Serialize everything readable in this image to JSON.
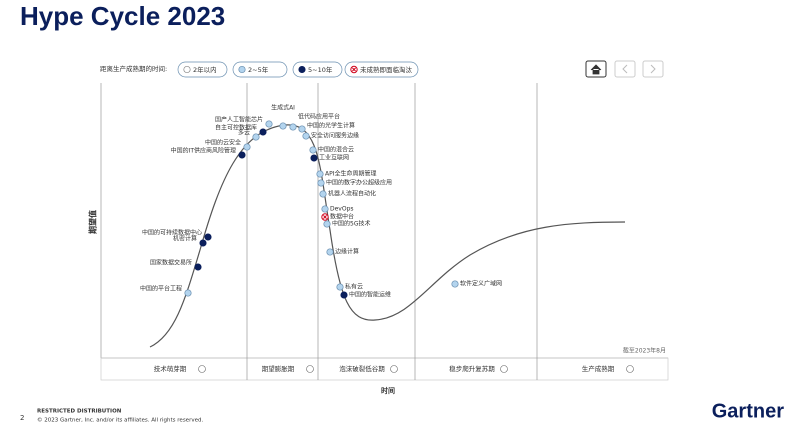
{
  "header": {
    "title": "Hype Cycle 2023"
  },
  "legend": {
    "title": "距离生产成熟期的时间:",
    "items": [
      "2年以内",
      "2~5年",
      "5~10年",
      "未成熟即面临淘汰"
    ]
  },
  "chart": {
    "y_axis_label": "期望值",
    "x_axis_label": "时间",
    "as_of": "截至2023年8月",
    "phases": [
      "技术萌芽期",
      "期望膨胀期",
      "泡沫破裂低谷期",
      "稳步爬升复苏期",
      "生产成熟期"
    ],
    "nodes": [
      {
        "label": "中国的平台工程",
        "legend": 1
      },
      {
        "label": "国家数据交易所",
        "legend": 2
      },
      {
        "label": "机密计算",
        "legend": 2
      },
      {
        "label": "中国的可持续数据中心",
        "legend": 2
      },
      {
        "label": "中国的IT供应商风险管理",
        "legend": 2
      },
      {
        "label": "中国的云安全",
        "legend": 1
      },
      {
        "label": "多云",
        "legend": 1
      },
      {
        "label": "自主可控数据库",
        "legend": 2
      },
      {
        "label": "国产人工智能芯片",
        "legend": 1
      },
      {
        "label": "生成式AI",
        "legend": 1
      },
      {
        "label": "低代码应用平台",
        "legend": 1
      },
      {
        "label": "中国的光学生计算",
        "legend": 1
      },
      {
        "label": "安全访问服务边缘",
        "legend": 1
      },
      {
        "label": "中国的混合云",
        "legend": 1
      },
      {
        "label": "工业互联网",
        "legend": 2
      },
      {
        "label": "API全生命周期管理",
        "legend": 1
      },
      {
        "label": "中国的数字办公超级应用",
        "legend": 1
      },
      {
        "label": "机器人流程自动化",
        "legend": 1
      },
      {
        "label": "DevOps",
        "legend": 1
      },
      {
        "label": "数据中台",
        "legend": 3
      },
      {
        "label": "中国的5G技术",
        "legend": 1
      },
      {
        "label": "边缘计算",
        "legend": 1
      },
      {
        "label": "私有云",
        "legend": 1
      },
      {
        "label": "中国的智能运维",
        "legend": 2
      },
      {
        "label": "软件定义广域网",
        "legend": 1
      }
    ]
  },
  "footer": {
    "page": "2",
    "distribution": "RESTRICTED DISTRIBUTION",
    "copyright": "© 2023 Gartner, Inc. and/or its affiliates. All rights reserved.",
    "brand": "Gartner"
  }
}
